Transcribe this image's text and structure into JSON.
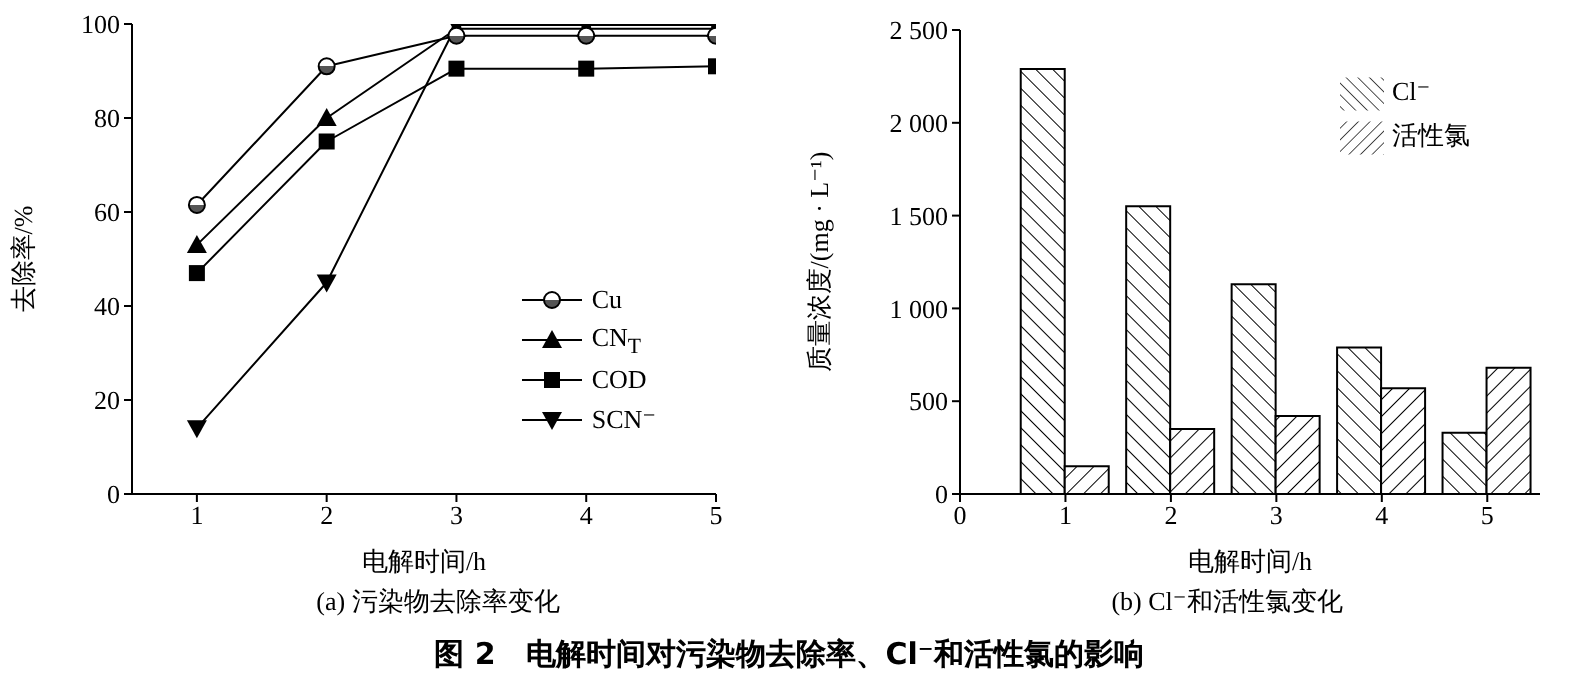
{
  "chart_data": [
    {
      "type": "line",
      "xlabel": "电解时间/h",
      "ylabel": "去除率/%",
      "x": [
        1,
        2,
        3,
        4,
        5
      ],
      "xlim": [
        0.5,
        5
      ],
      "xticks": [
        1,
        2,
        3,
        4,
        5
      ],
      "ylim": [
        0,
        100
      ],
      "yticks": [
        0,
        20,
        40,
        60,
        80,
        100
      ],
      "legend": "right",
      "grid": false,
      "series": [
        {
          "name": "Cu",
          "color": "#000000",
          "marker": "circle",
          "values": [
            61.5,
            91,
            97.5,
            97.5,
            97.5
          ]
        },
        {
          "name": "CN$_{T}$",
          "color": "#000000",
          "marker": "triangle",
          "values": [
            53,
            80,
            99,
            99,
            99
          ]
        },
        {
          "name": "COD",
          "color": "#000000",
          "marker": "square",
          "values": [
            47,
            75,
            90.5,
            90.5,
            91
          ]
        },
        {
          "name": "SCN⁻",
          "color": "#000000",
          "marker": "triangle-down",
          "values": [
            14,
            45,
            99.8,
            99.8,
            99.8
          ]
        }
      ],
      "annotations": [
        "(a) 污染物去除率变化",
        "图 2　电解时间对污染物去除率、Cl⁻和活性氯的影响"
      ]
    },
    {
      "type": "bar",
      "xlabel": "电解时间/h",
      "ylabel": "质量浓度/(mg · L⁻¹)",
      "x": [
        1,
        2,
        3,
        4,
        5
      ],
      "xlim": [
        0,
        5.5
      ],
      "xticks": [
        0,
        1,
        2,
        3,
        4,
        5
      ],
      "ylim": [
        0,
        2500
      ],
      "yticks": [
        0,
        500,
        {
          "value": 1000,
          "label": "1 000"
        },
        {
          "value": 1500,
          "label": "1 500"
        },
        {
          "value": 2000,
          "label": "2 000"
        },
        {
          "value": 2500,
          "label": "2 500"
        }
      ],
      "legend": "top right",
      "grid": false,
      "series": [
        {
          "name": "Cl⁻",
          "color": "#000000",
          "values": [
            2290,
            1550,
            1130,
            790,
            330
          ]
        },
        {
          "name": "活性氯",
          "color": "#000000",
          "values": [
            150,
            350,
            420,
            570,
            680
          ]
        }
      ],
      "annotations": [
        "(b) Cl⁻和活性氯变化"
      ]
    }
  ]
}
